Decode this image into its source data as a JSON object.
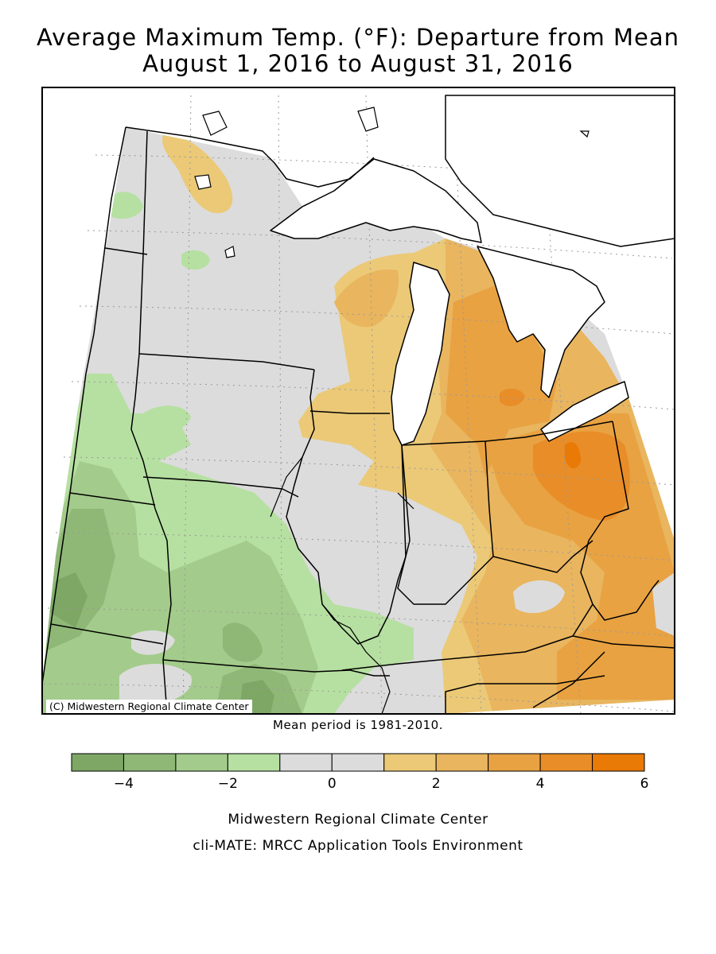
{
  "title_line1": "Average Maximum Temp. (°F): Departure from Mean",
  "title_line2": "August 1, 2016 to August 31, 2016",
  "copyright": "(C) Midwestern Regional Climate Center",
  "mean_period": "Mean period is 1981-2010.",
  "credit_line1": "Midwestern Regional Climate Center",
  "credit_line2": "cli-MATE: MRCC Application Tools Environment",
  "legend": {
    "bins": [
      {
        "from": -5,
        "to": -4,
        "color": "#7ea766"
      },
      {
        "from": -4,
        "to": -3,
        "color": "#8fb877"
      },
      {
        "from": -3,
        "to": -2,
        "color": "#a3cb8b"
      },
      {
        "from": -2,
        "to": -1,
        "color": "#b6e0a1"
      },
      {
        "from": -1,
        "to": 0,
        "color": "#dcdcdc"
      },
      {
        "from": 0,
        "to": 1,
        "color": "#dcdcdc"
      },
      {
        "from": 1,
        "to": 2,
        "color": "#ebc977"
      },
      {
        "from": 2,
        "to": 3,
        "color": "#e9b55e"
      },
      {
        "from": 3,
        "to": 4,
        "color": "#e8a242"
      },
      {
        "from": 4,
        "to": 5,
        "color": "#e88d28"
      },
      {
        "from": 5,
        "to": 6,
        "color": "#e97a05"
      }
    ],
    "tick_labels": [
      {
        "value": -4,
        "label": "−4"
      },
      {
        "value": -2,
        "label": "−2"
      },
      {
        "value": 0,
        "label": "0"
      },
      {
        "value": 2,
        "label": "2"
      },
      {
        "value": 4,
        "label": "4"
      },
      {
        "value": 6,
        "label": "6"
      }
    ]
  }
}
